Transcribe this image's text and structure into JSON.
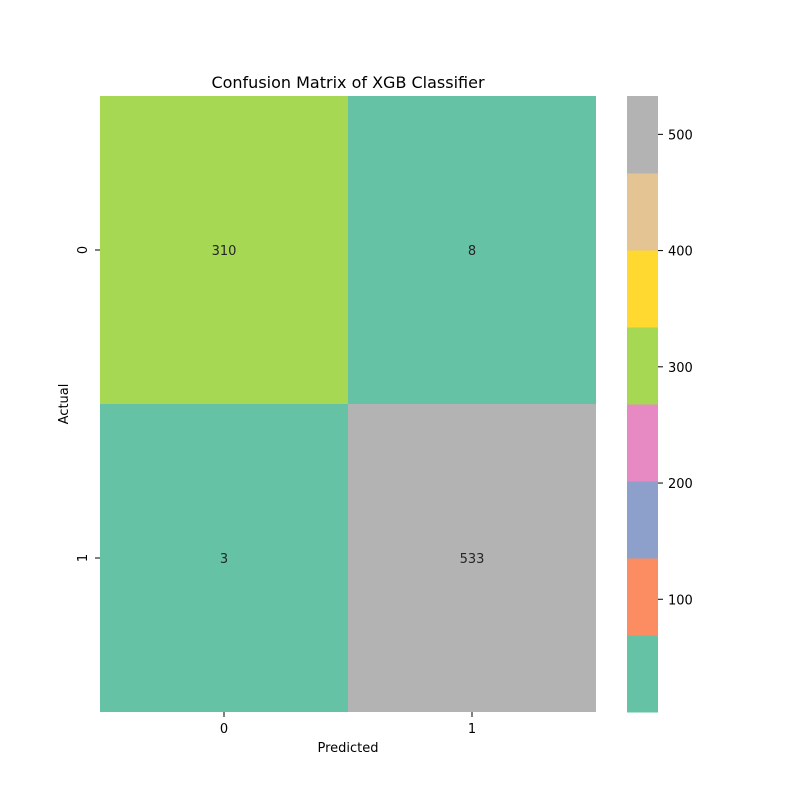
{
  "chart_data": {
    "type": "heatmap",
    "title": "Confusion Matrix of XGB Classifier",
    "xlabel": "Predicted",
    "ylabel": "Actual",
    "x_categories": [
      "0",
      "1"
    ],
    "y_categories": [
      "0",
      "1"
    ],
    "values": [
      [
        310,
        8
      ],
      [
        3,
        533
      ]
    ],
    "value_range": [
      3,
      533
    ],
    "colormap_name": "Set2",
    "colormap": [
      "#66c2a5",
      "#fc8d62",
      "#8da0cb",
      "#e78ac3",
      "#a6d854",
      "#ffd92f",
      "#e5c494",
      "#b3b3b3"
    ],
    "colorbar": {
      "ticks": [
        100,
        200,
        300,
        400,
        500
      ],
      "tick_labels": [
        "100",
        "200",
        "300",
        "400",
        "500"
      ]
    }
  }
}
